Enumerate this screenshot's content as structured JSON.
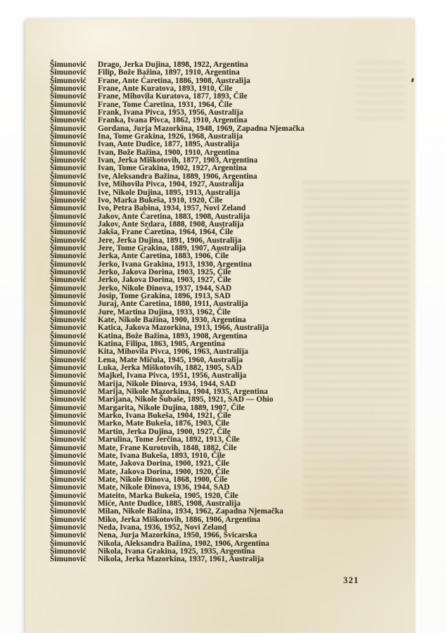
{
  "page": {
    "page_number": "321",
    "surname": "Šimunović",
    "columns": [
      "given_name",
      "parent_name",
      "birth_year",
      "emigration_year",
      "destination"
    ],
    "entries": [
      [
        "Drago",
        "Jerka Dujina",
        "1898",
        "1922",
        "Argentina"
      ],
      [
        "Filip",
        "Bože Bažina",
        "1897",
        "1910",
        "Argentina"
      ],
      [
        "Frane",
        "Ante Ćaretina",
        "1886",
        "1908",
        "Australija"
      ],
      [
        "Frane",
        "Ante Kuratova",
        "1893",
        "1910",
        "Čile"
      ],
      [
        "Frane",
        "Mihovila Kuratova",
        "1877",
        "1893",
        "Čile"
      ],
      [
        "Frane",
        "Tome Ćaretina",
        "1931",
        "1964",
        "Čile"
      ],
      [
        "Frank",
        "Ivana Pivca",
        "1953",
        "1956",
        "Australija"
      ],
      [
        "Franka",
        "Ivana Pivca",
        "1862",
        "1910",
        "Argentina"
      ],
      [
        "Gordana",
        "Jurja Mazorkina",
        "1948",
        "1969",
        "Zapadna Njemačka"
      ],
      [
        "Ina",
        "Tome Grakina",
        "1926",
        "1968",
        "Australija"
      ],
      [
        "Ivan",
        "Ante Dudice",
        "1877",
        "1895",
        "Australija"
      ],
      [
        "Ivan",
        "Bože Bažina",
        "1900",
        "1910",
        "Argentina"
      ],
      [
        "Ivan",
        "Jerka Miškotovih",
        "1877",
        "1903",
        "Argentina"
      ],
      [
        "Ivan",
        "Tome Grakina",
        "1902",
        "1927",
        "Argentina"
      ],
      [
        "Ive",
        "Aleksandra Bažina",
        "1889",
        "1906",
        "Argentina"
      ],
      [
        "Ive",
        "Mihovila Pivca",
        "1904",
        "1927",
        "Australija"
      ],
      [
        "Ive",
        "Nikole Dujina",
        "1895",
        "1913",
        "Australija"
      ],
      [
        "Ivo",
        "Marka Bukeša",
        "1910",
        "1920",
        "Čile"
      ],
      [
        "Ivo",
        "Petra Babina",
        "1934",
        "1957",
        "Novi Zeland"
      ],
      [
        "Jakov",
        "Ante Ćaretina",
        "1883",
        "1908",
        "Australija"
      ],
      [
        "Jakov",
        "Ante Srdara",
        "1888",
        "1908",
        "Australija"
      ],
      [
        "Jakša",
        "Frane Ćaretina",
        "1964",
        "1964",
        "Čile"
      ],
      [
        "Jere",
        "Jerka Dujina",
        "1891",
        "1906",
        "Australija"
      ],
      [
        "Jere",
        "Tome Grakina",
        "1889",
        "1907",
        "Australija"
      ],
      [
        "Jerka",
        "Ante Ćaretina",
        "1883",
        "1906",
        "Čile"
      ],
      [
        "Jerko",
        "Ivana Grakina",
        "1913",
        "1930",
        "Argentina"
      ],
      [
        "Jerko",
        "Jakova Dorina",
        "1903",
        "1925",
        "Čile"
      ],
      [
        "Jerko",
        "Jakova Dorina",
        "1903",
        "1927",
        "Čile"
      ],
      [
        "Jerko",
        "Nikole Đinova",
        "1937",
        "1944",
        "SAD"
      ],
      [
        "Josip",
        "Tome Grakina",
        "1896",
        "1913",
        "SAD"
      ],
      [
        "Juraj",
        "Ante Ćaretina",
        "1880",
        "1911",
        "Australija"
      ],
      [
        "Jure",
        "Martina Dujina",
        "1933",
        "1962",
        "Čile"
      ],
      [
        "Kate",
        "Nikole Bažina",
        "1900",
        "1930",
        "Argentina"
      ],
      [
        "Katica",
        "Jakova Mazorkina",
        "1913",
        "1966",
        "Australija"
      ],
      [
        "Katina",
        "Bože Bažina",
        "1893",
        "1908",
        "Argentina"
      ],
      [
        "Katina",
        "Filipa",
        "1863",
        "1905",
        "Argentina"
      ],
      [
        "Kita",
        "Mihovila Pivca",
        "1906",
        "1963",
        "Australija"
      ],
      [
        "Lena",
        "Mate Mičula",
        "1945",
        "1960",
        "Australija"
      ],
      [
        "Luka",
        "Jerka Miškotovih",
        "1882",
        "1905",
        "SAD"
      ],
      [
        "Majkel",
        "Ivana Pivca",
        "1951",
        "1956",
        "Australija"
      ],
      [
        "Marija",
        "Nikole Đinova",
        "1934",
        "1944",
        "SAD"
      ],
      [
        "Marija",
        "Nikole Mazorkina",
        "1904",
        "1935",
        "Argentina"
      ],
      [
        "Marijana",
        "Nikole Šubaše",
        "1895",
        "1921",
        "SAD — Ohio"
      ],
      [
        "Margarita",
        "Nikole Dujina",
        "1889",
        "1907",
        "Čile"
      ],
      [
        "Marko",
        "Ivana Bukeša",
        "1904",
        "1921",
        "Čile"
      ],
      [
        "Marko",
        "Mate Bukeša",
        "1876",
        "1903",
        "Čile"
      ],
      [
        "Martin",
        "Jerka Dujina",
        "1900",
        "1927",
        "Čile"
      ],
      [
        "Marulina",
        "Tome Jerčina",
        "1892",
        "1913",
        "Čile"
      ],
      [
        "Mate",
        "Frane Kurotovih",
        "1848",
        "1882",
        "Čile"
      ],
      [
        "Mate",
        "Ivana Bukeša",
        "1893",
        "1910",
        "Čile"
      ],
      [
        "Mate",
        "Jakova Dorina",
        "1900",
        "1921",
        "Čile"
      ],
      [
        "Mate",
        "Jakova Dorina",
        "1900",
        "1920",
        "Čile"
      ],
      [
        "Mate",
        "Nikole Đinova",
        "1868",
        "1900",
        "Čile"
      ],
      [
        "Mate",
        "Nikole Đinova",
        "1936",
        "1944",
        "SAD"
      ],
      [
        "Mateito",
        "Marka Bukeša",
        "1905",
        "1920",
        "Čile"
      ],
      [
        "Miće",
        "Ante Dudice",
        "1885",
        "1908",
        "Australija"
      ],
      [
        "Milan",
        "Nikole Bažina",
        "1934",
        "1962",
        "Zapadna Njemačka"
      ],
      [
        "Miko",
        "Jerka Miškotovih",
        "1886",
        "1906",
        "Argentina"
      ],
      [
        "Neda",
        "Ivana",
        "1936",
        "1952",
        "Novi Zeland"
      ],
      [
        "Nena",
        "Jurja Mazorkina",
        "1950",
        "1966",
        "Švicarska"
      ],
      [
        "Nikola",
        "Aleksandra Bažina",
        "1902",
        "1906",
        "Argentina"
      ],
      [
        "Nikola",
        "Ivana Grakina",
        "1925",
        "1935",
        "Argentina"
      ],
      [
        "Nikola",
        "Jerka Mazorkina",
        "1937",
        "1961",
        "Australija"
      ]
    ],
    "colors": {
      "paper": "#eee6d0",
      "ink": "#38301f",
      "scan_background": "#fdfdfd"
    }
  }
}
